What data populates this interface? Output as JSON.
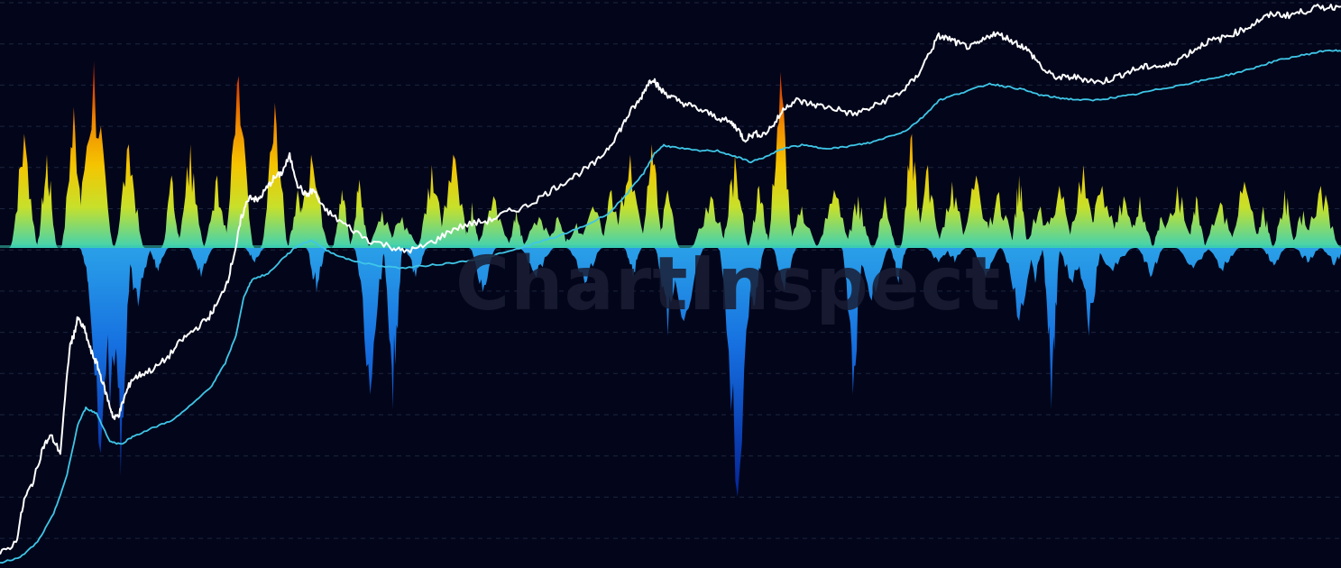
{
  "watermark": "ChartInspect",
  "colors": {
    "background": "#03061a",
    "grid": "#1c2540",
    "price_line": "#ffffff",
    "average_line": "#3fc6e8",
    "positive_gradient": [
      "#3fd2b4",
      "#c8e02a",
      "#f5c400",
      "#f08a00",
      "#d63a00",
      "#9a0000"
    ],
    "negative_gradient": [
      "#2aa0e8",
      "#1670e0",
      "#0a3cb0",
      "#000f80"
    ]
  },
  "chart_data": {
    "type": "area",
    "grid": true,
    "log_scale": true,
    "x_range": [
      0,
      1
    ],
    "price_range": [
      0,
      1
    ],
    "oscillator_range": [
      -1,
      1
    ],
    "series": [
      {
        "kind": "line",
        "color": "#ffffff",
        "points": [
          [
            0.0,
            0.018
          ],
          [
            0.012,
            0.04
          ],
          [
            0.018,
            0.115
          ],
          [
            0.025,
            0.15
          ],
          [
            0.032,
            0.21
          ],
          [
            0.038,
            0.23
          ],
          [
            0.045,
            0.2
          ],
          [
            0.052,
            0.39
          ],
          [
            0.055,
            0.41
          ],
          [
            0.058,
            0.44
          ],
          [
            0.063,
            0.42
          ],
          [
            0.068,
            0.38
          ],
          [
            0.072,
            0.36
          ],
          [
            0.076,
            0.33
          ],
          [
            0.081,
            0.29
          ],
          [
            0.085,
            0.26
          ],
          [
            0.089,
            0.27
          ],
          [
            0.093,
            0.3
          ],
          [
            0.098,
            0.33
          ],
          [
            0.105,
            0.34
          ],
          [
            0.115,
            0.35
          ],
          [
            0.125,
            0.37
          ],
          [
            0.135,
            0.4
          ],
          [
            0.145,
            0.42
          ],
          [
            0.155,
            0.44
          ],
          [
            0.163,
            0.47
          ],
          [
            0.17,
            0.51
          ],
          [
            0.176,
            0.57
          ],
          [
            0.18,
            0.62
          ],
          [
            0.186,
            0.66
          ],
          [
            0.192,
            0.65
          ],
          [
            0.198,
            0.67
          ],
          [
            0.204,
            0.69
          ],
          [
            0.21,
            0.7
          ],
          [
            0.216,
            0.73
          ],
          [
            0.222,
            0.68
          ],
          [
            0.228,
            0.66
          ],
          [
            0.234,
            0.67
          ],
          [
            0.24,
            0.64
          ],
          [
            0.25,
            0.62
          ],
          [
            0.262,
            0.6
          ],
          [
            0.275,
            0.58
          ],
          [
            0.29,
            0.57
          ],
          [
            0.3,
            0.56
          ],
          [
            0.312,
            0.565
          ],
          [
            0.325,
            0.58
          ],
          [
            0.338,
            0.6
          ],
          [
            0.352,
            0.61
          ],
          [
            0.365,
            0.615
          ],
          [
            0.378,
            0.63
          ],
          [
            0.392,
            0.64
          ],
          [
            0.405,
            0.66
          ],
          [
            0.418,
            0.68
          ],
          [
            0.432,
            0.7
          ],
          [
            0.445,
            0.72
          ],
          [
            0.455,
            0.75
          ],
          [
            0.463,
            0.78
          ],
          [
            0.47,
            0.81
          ],
          [
            0.477,
            0.83
          ],
          [
            0.483,
            0.86
          ],
          [
            0.487,
            0.87
          ],
          [
            0.492,
            0.85
          ],
          [
            0.498,
            0.84
          ],
          [
            0.505,
            0.83
          ],
          [
            0.515,
            0.82
          ],
          [
            0.525,
            0.81
          ],
          [
            0.535,
            0.8
          ],
          [
            0.545,
            0.79
          ],
          [
            0.55,
            0.78
          ],
          [
            0.555,
            0.76
          ],
          [
            0.562,
            0.77
          ],
          [
            0.57,
            0.77
          ],
          [
            0.578,
            0.79
          ],
          [
            0.586,
            0.82
          ],
          [
            0.594,
            0.83
          ],
          [
            0.602,
            0.825
          ],
          [
            0.612,
            0.82
          ],
          [
            0.624,
            0.815
          ],
          [
            0.636,
            0.805
          ],
          [
            0.648,
            0.815
          ],
          [
            0.66,
            0.83
          ],
          [
            0.672,
            0.845
          ],
          [
            0.683,
            0.87
          ],
          [
            0.692,
            0.91
          ],
          [
            0.7,
            0.945
          ],
          [
            0.708,
            0.94
          ],
          [
            0.716,
            0.93
          ],
          [
            0.724,
            0.925
          ],
          [
            0.732,
            0.935
          ],
          [
            0.74,
            0.95
          ],
          [
            0.748,
            0.945
          ],
          [
            0.756,
            0.935
          ],
          [
            0.764,
            0.925
          ],
          [
            0.772,
            0.905
          ],
          [
            0.78,
            0.88
          ],
          [
            0.79,
            0.87
          ],
          [
            0.8,
            0.872
          ],
          [
            0.81,
            0.868
          ],
          [
            0.82,
            0.862
          ],
          [
            0.83,
            0.87
          ],
          [
            0.84,
            0.88
          ],
          [
            0.85,
            0.888
          ],
          [
            0.86,
            0.892
          ],
          [
            0.87,
            0.89
          ],
          [
            0.88,
            0.905
          ],
          [
            0.89,
            0.92
          ],
          [
            0.9,
            0.935
          ],
          [
            0.91,
            0.94
          ],
          [
            0.92,
            0.95
          ],
          [
            0.93,
            0.96
          ],
          [
            0.94,
            0.975
          ],
          [
            0.95,
            0.985
          ],
          [
            0.96,
            0.982
          ],
          [
            0.97,
            0.988
          ],
          [
            0.98,
            0.995
          ],
          [
            0.99,
            0.997
          ],
          [
            1.0,
            0.998
          ]
        ]
      },
      {
        "kind": "line",
        "color": "#3fc6e8",
        "points": [
          [
            0.0,
            0.003
          ],
          [
            0.015,
            0.012
          ],
          [
            0.028,
            0.04
          ],
          [
            0.04,
            0.09
          ],
          [
            0.05,
            0.16
          ],
          [
            0.058,
            0.25
          ],
          [
            0.064,
            0.28
          ],
          [
            0.072,
            0.27
          ],
          [
            0.082,
            0.22
          ],
          [
            0.09,
            0.215
          ],
          [
            0.1,
            0.23
          ],
          [
            0.115,
            0.245
          ],
          [
            0.13,
            0.26
          ],
          [
            0.145,
            0.29
          ],
          [
            0.158,
            0.32
          ],
          [
            0.168,
            0.36
          ],
          [
            0.176,
            0.41
          ],
          [
            0.182,
            0.48
          ],
          [
            0.188,
            0.51
          ],
          [
            0.2,
            0.52
          ],
          [
            0.212,
            0.55
          ],
          [
            0.222,
            0.57
          ],
          [
            0.232,
            0.58
          ],
          [
            0.245,
            0.56
          ],
          [
            0.26,
            0.545
          ],
          [
            0.28,
            0.535
          ],
          [
            0.3,
            0.53
          ],
          [
            0.32,
            0.535
          ],
          [
            0.34,
            0.54
          ],
          [
            0.36,
            0.548
          ],
          [
            0.38,
            0.56
          ],
          [
            0.4,
            0.575
          ],
          [
            0.42,
            0.59
          ],
          [
            0.44,
            0.61
          ],
          [
            0.455,
            0.63
          ],
          [
            0.47,
            0.67
          ],
          [
            0.48,
            0.7
          ],
          [
            0.488,
            0.735
          ],
          [
            0.495,
            0.75
          ],
          [
            0.505,
            0.745
          ],
          [
            0.52,
            0.74
          ],
          [
            0.535,
            0.74
          ],
          [
            0.548,
            0.73
          ],
          [
            0.56,
            0.72
          ],
          [
            0.572,
            0.73
          ],
          [
            0.585,
            0.745
          ],
          [
            0.598,
            0.75
          ],
          [
            0.612,
            0.745
          ],
          [
            0.625,
            0.745
          ],
          [
            0.638,
            0.75
          ],
          [
            0.65,
            0.755
          ],
          [
            0.662,
            0.765
          ],
          [
            0.675,
            0.775
          ],
          [
            0.688,
            0.8
          ],
          [
            0.7,
            0.83
          ],
          [
            0.712,
            0.84
          ],
          [
            0.725,
            0.85
          ],
          [
            0.738,
            0.86
          ],
          [
            0.75,
            0.855
          ],
          [
            0.762,
            0.85
          ],
          [
            0.775,
            0.84
          ],
          [
            0.788,
            0.835
          ],
          [
            0.8,
            0.832
          ],
          [
            0.815,
            0.83
          ],
          [
            0.83,
            0.835
          ],
          [
            0.845,
            0.84
          ],
          [
            0.86,
            0.848
          ],
          [
            0.875,
            0.855
          ],
          [
            0.89,
            0.862
          ],
          [
            0.905,
            0.87
          ],
          [
            0.92,
            0.878
          ],
          [
            0.935,
            0.888
          ],
          [
            0.95,
            0.9
          ],
          [
            0.965,
            0.908
          ],
          [
            0.98,
            0.915
          ],
          [
            0.99,
            0.92
          ],
          [
            1.0,
            0.918
          ]
        ]
      },
      {
        "kind": "oscillator",
        "peaks": [
          [
            0.018,
            0.55
          ],
          [
            0.035,
            0.45
          ],
          [
            0.055,
            0.68
          ],
          [
            0.07,
            0.9
          ],
          [
            0.096,
            0.5
          ],
          [
            0.128,
            0.35
          ],
          [
            0.142,
            0.5
          ],
          [
            0.162,
            0.35
          ],
          [
            0.178,
            0.83
          ],
          [
            0.205,
            0.7
          ],
          [
            0.222,
            0.28
          ],
          [
            0.232,
            0.45
          ],
          [
            0.255,
            0.28
          ],
          [
            0.268,
            0.33
          ],
          [
            0.285,
            0.18
          ],
          [
            0.3,
            0.15
          ],
          [
            0.322,
            0.4
          ],
          [
            0.338,
            0.45
          ],
          [
            0.352,
            0.22
          ],
          [
            0.368,
            0.25
          ],
          [
            0.385,
            0.18
          ],
          [
            0.402,
            0.15
          ],
          [
            0.416,
            0.15
          ],
          [
            0.43,
            0.12
          ],
          [
            0.442,
            0.2
          ],
          [
            0.456,
            0.28
          ],
          [
            0.47,
            0.45
          ],
          [
            0.486,
            0.5
          ],
          [
            0.498,
            0.28
          ],
          [
            0.53,
            0.25
          ],
          [
            0.548,
            0.45
          ],
          [
            0.566,
            0.3
          ],
          [
            0.582,
            0.85
          ],
          [
            0.598,
            0.2
          ],
          [
            0.622,
            0.28
          ],
          [
            0.64,
            0.25
          ],
          [
            0.66,
            0.25
          ],
          [
            0.68,
            0.55
          ],
          [
            0.692,
            0.4
          ],
          [
            0.71,
            0.32
          ],
          [
            0.728,
            0.35
          ],
          [
            0.745,
            0.27
          ],
          [
            0.76,
            0.35
          ],
          [
            0.776,
            0.2
          ],
          [
            0.79,
            0.3
          ],
          [
            0.808,
            0.4
          ],
          [
            0.822,
            0.3
          ],
          [
            0.838,
            0.25
          ],
          [
            0.85,
            0.25
          ],
          [
            0.866,
            0.15
          ],
          [
            0.878,
            0.3
          ],
          [
            0.892,
            0.25
          ],
          [
            0.91,
            0.22
          ],
          [
            0.928,
            0.32
          ],
          [
            0.942,
            0.2
          ],
          [
            0.958,
            0.28
          ],
          [
            0.972,
            0.18
          ],
          [
            0.985,
            0.3
          ]
        ],
        "troughs": [
          [
            0.066,
            -0.12
          ],
          [
            0.075,
            -0.7
          ],
          [
            0.082,
            -0.55
          ],
          [
            0.09,
            -0.78
          ],
          [
            0.103,
            -0.2
          ],
          [
            0.118,
            -0.08
          ],
          [
            0.15,
            -0.1
          ],
          [
            0.19,
            -0.05
          ],
          [
            0.236,
            -0.15
          ],
          [
            0.276,
            -0.5
          ],
          [
            0.293,
            -0.55
          ],
          [
            0.31,
            -0.1
          ],
          [
            0.36,
            -0.15
          ],
          [
            0.4,
            -0.1
          ],
          [
            0.436,
            -0.12
          ],
          [
            0.472,
            -0.1
          ],
          [
            0.498,
            -0.3
          ],
          [
            0.51,
            -0.25
          ],
          [
            0.55,
            -0.85
          ],
          [
            0.562,
            -0.2
          ],
          [
            0.585,
            -0.15
          ],
          [
            0.636,
            -0.5
          ],
          [
            0.65,
            -0.18
          ],
          [
            0.67,
            -0.12
          ],
          [
            0.7,
            -0.05
          ],
          [
            0.712,
            -0.05
          ],
          [
            0.735,
            -0.1
          ],
          [
            0.76,
            -0.25
          ],
          [
            0.772,
            -0.12
          ],
          [
            0.784,
            -0.55
          ],
          [
            0.8,
            -0.12
          ],
          [
            0.812,
            -0.3
          ],
          [
            0.83,
            -0.08
          ],
          [
            0.858,
            -0.1
          ],
          [
            0.89,
            -0.07
          ],
          [
            0.912,
            -0.08
          ],
          [
            0.95,
            -0.06
          ],
          [
            0.975,
            -0.05
          ],
          [
            0.995,
            -0.06
          ]
        ]
      }
    ]
  }
}
